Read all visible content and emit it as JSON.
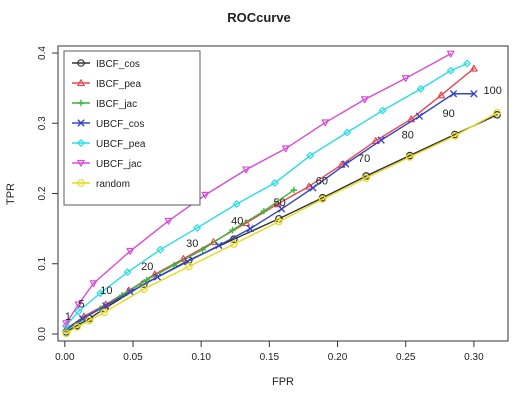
{
  "chart_data": {
    "type": "line",
    "title": "ROCcurve",
    "xlabel": "FPR",
    "ylabel": "TPR",
    "xlim": [
      -0.005,
      0.325
    ],
    "ylim": [
      -0.01,
      0.41
    ],
    "xticks": [
      "0.00",
      "0.05",
      "0.10",
      "0.15",
      "0.20",
      "0.25",
      "0.30"
    ],
    "yticks": [
      "0.0",
      "0.1",
      "0.2",
      "0.3",
      "0.4"
    ],
    "xtick_values": [
      0.0,
      0.05,
      0.1,
      0.15,
      0.2,
      0.25,
      0.3
    ],
    "ytick_values": [
      0.0,
      0.1,
      0.2,
      0.3,
      0.4
    ],
    "grid": false,
    "legend_position": "top-left",
    "series": [
      {
        "name": "IBCF_cos",
        "color": "#333333",
        "marker": "circle",
        "x": [
          0.001,
          0.009,
          0.018,
          0.029,
          0.058,
          0.091,
          0.124,
          0.157,
          0.189,
          0.221,
          0.253,
          0.286,
          0.317
        ],
        "y": [
          0.003,
          0.012,
          0.022,
          0.036,
          0.071,
          0.105,
          0.135,
          0.164,
          0.194,
          0.225,
          0.254,
          0.284,
          0.312
        ]
      },
      {
        "name": "IBCF_pea",
        "color": "#e8484f",
        "marker": "triangle-up",
        "x": [
          0.001,
          0.014,
          0.03,
          0.047,
          0.066,
          0.087,
          0.109,
          0.133,
          0.156,
          0.179,
          0.203,
          0.228,
          0.254,
          0.276,
          0.3
        ],
        "y": [
          0.007,
          0.025,
          0.042,
          0.062,
          0.085,
          0.107,
          0.131,
          0.158,
          0.185,
          0.21,
          0.241,
          0.275,
          0.306,
          0.34,
          0.378
        ]
      },
      {
        "name": "IBCF_jac",
        "color": "#39b839",
        "marker": "plus",
        "x": [
          0.001,
          0.012,
          0.026,
          0.042,
          0.06,
          0.08,
          0.101,
          0.123,
          0.146,
          0.168
        ],
        "y": [
          0.005,
          0.02,
          0.036,
          0.055,
          0.077,
          0.098,
          0.12,
          0.148,
          0.175,
          0.205
        ]
      },
      {
        "name": "UBCF_cos",
        "color": "#3446c7",
        "marker": "x",
        "x": [
          0.001,
          0.013,
          0.03,
          0.048,
          0.068,
          0.09,
          0.113,
          0.136,
          0.159,
          0.182,
          0.206,
          0.232,
          0.26,
          0.285,
          0.3
        ],
        "y": [
          0.007,
          0.022,
          0.04,
          0.06,
          0.081,
          0.103,
          0.126,
          0.15,
          0.178,
          0.208,
          0.242,
          0.276,
          0.31,
          0.342,
          0.342
        ]
      },
      {
        "name": "UBCF_pea",
        "color": "#27dde6",
        "marker": "diamond",
        "x": [
          0.001,
          0.01,
          0.026,
          0.046,
          0.07,
          0.097,
          0.126,
          0.154,
          0.18,
          0.207,
          0.233,
          0.261,
          0.283,
          0.295
        ],
        "y": [
          0.012,
          0.032,
          0.058,
          0.088,
          0.12,
          0.151,
          0.185,
          0.215,
          0.254,
          0.287,
          0.318,
          0.349,
          0.375,
          0.385
        ]
      },
      {
        "name": "UBCF_jac",
        "color": "#d64bd6",
        "marker": "triangle-down",
        "x": [
          0.001,
          0.01,
          0.021,
          0.048,
          0.076,
          0.103,
          0.133,
          0.162,
          0.191,
          0.22,
          0.25,
          0.283
        ],
        "y": [
          0.015,
          0.042,
          0.072,
          0.118,
          0.161,
          0.198,
          0.234,
          0.264,
          0.301,
          0.334,
          0.364,
          0.399
        ]
      },
      {
        "name": "random",
        "color": "#e6d81f",
        "marker": "circle",
        "x": [
          0.001,
          0.009,
          0.018,
          0.029,
          0.058,
          0.091,
          0.124,
          0.157,
          0.189,
          0.221,
          0.253,
          0.286,
          0.317
        ],
        "y": [
          0.001,
          0.01,
          0.019,
          0.031,
          0.064,
          0.096,
          0.128,
          0.16,
          0.192,
          0.222,
          0.252,
          0.282,
          0.315
        ]
      }
    ],
    "point_labels": [
      {
        "text": "1",
        "x": 0.0,
        "y": 0.02
      },
      {
        "text": "5",
        "x": 0.01,
        "y": 0.038
      },
      {
        "text": "10",
        "x": 0.026,
        "y": 0.057
      },
      {
        "text": "20",
        "x": 0.056,
        "y": 0.091
      },
      {
        "text": "30",
        "x": 0.089,
        "y": 0.124
      },
      {
        "text": "40",
        "x": 0.122,
        "y": 0.156
      },
      {
        "text": "50",
        "x": 0.153,
        "y": 0.182
      },
      {
        "text": "60",
        "x": 0.184,
        "y": 0.213
      },
      {
        "text": "70",
        "x": 0.215,
        "y": 0.245
      },
      {
        "text": "80",
        "x": 0.247,
        "y": 0.278
      },
      {
        "text": "90",
        "x": 0.277,
        "y": 0.309
      },
      {
        "text": "100",
        "x": 0.307,
        "y": 0.342
      }
    ]
  }
}
